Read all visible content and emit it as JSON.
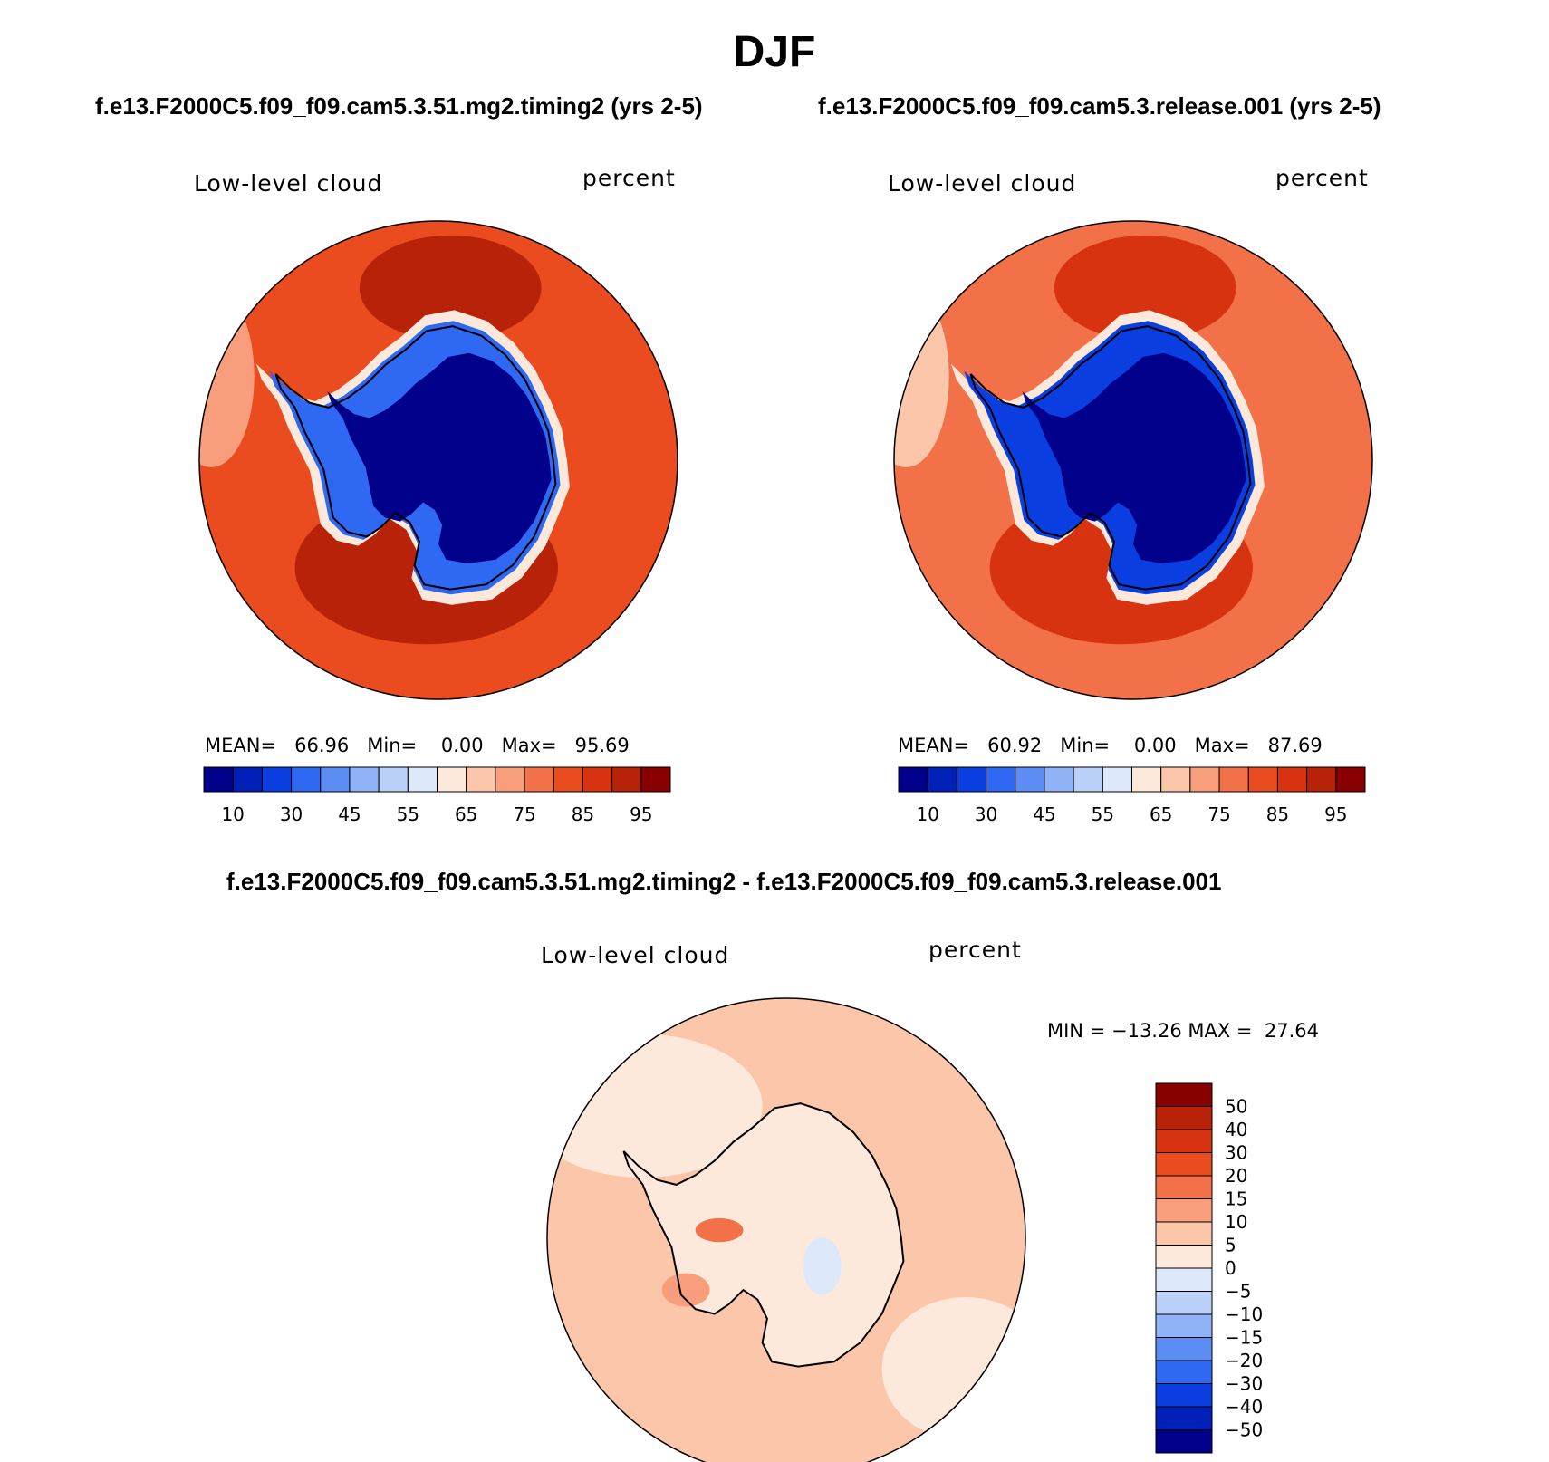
{
  "header": {
    "title": "DJF",
    "case1": "f.e13.F2000C5.f09_f09.cam5.3.51.mg2.timing2 (yrs 2-5)",
    "case2": "f.e13.F2000C5.f09_f09.cam5.3.release.001 (yrs 2-5)",
    "diff": "f.e13.F2000C5.f09_f09.cam5.3.51.mg2.timing2 - f.e13.F2000C5.f09_f09.cam5.3.release.001"
  },
  "panels": {
    "left": {
      "variable": "Low-level cloud",
      "units": "percent",
      "mean_label": "MEAN=",
      "mean": "66.96",
      "min_label": "Min=",
      "min": "0.00",
      "max_label": "Max=",
      "max": "95.69"
    },
    "right": {
      "variable": "Low-level cloud",
      "units": "percent",
      "mean_label": "MEAN=",
      "mean": "60.92",
      "min_label": "Min=",
      "min": "0.00",
      "max_label": "Max=",
      "max": "87.69"
    },
    "diff": {
      "variable": "Low-level cloud",
      "units": "percent",
      "min_label": "MIN =",
      "min": "−13.26",
      "max_label": "MAX =",
      "max": "27.64"
    }
  },
  "chart_data": [
    {
      "type": "heatmap",
      "projection": "south polar stereographic",
      "title": "f.e13.F2000C5.f09_f09.cam5.3.51.mg2.timing2 (yrs 2-5)",
      "variable": "Low-level cloud",
      "units": "percent",
      "mean": 66.96,
      "min": 0.0,
      "max": 95.69,
      "colorbar_ticks": [
        "10",
        "30",
        "45",
        "55",
        "65",
        "75",
        "85",
        "95"
      ],
      "colorbar_colors": [
        "#00008a",
        "#0020b8",
        "#0a3ee0",
        "#2f68f2",
        "#5b8df5",
        "#90b3f7",
        "#bcd1f9",
        "#dde9fb",
        "#fde9dc",
        "#fcc6ab",
        "#f99e7c",
        "#f37148",
        "#ea4b1f",
        "#d83310",
        "#b72208",
        "#880000"
      ],
      "land_color": "#00008a",
      "ocean_color": "#d83310",
      "regions": [
        {
          "name": "ocean ring",
          "color": "#ea4b1f"
        },
        {
          "name": "maximum cloud belt",
          "color": "#b72208"
        },
        {
          "name": "peripheral low",
          "color": "#f99e7c"
        },
        {
          "name": "antarctic coast",
          "color": "#2f68f2"
        },
        {
          "name": "antarctic interior",
          "color": "#00008a"
        }
      ]
    },
    {
      "type": "heatmap",
      "projection": "south polar stereographic",
      "title": "f.e13.F2000C5.f09_f09.cam5.3.release.001 (yrs 2-5)",
      "variable": "Low-level cloud",
      "units": "percent",
      "mean": 60.92,
      "min": 0.0,
      "max": 87.69,
      "colorbar_ticks": [
        "10",
        "30",
        "45",
        "55",
        "65",
        "75",
        "85",
        "95"
      ],
      "colorbar_colors": [
        "#00008a",
        "#0020b8",
        "#0a3ee0",
        "#2f68f2",
        "#5b8df5",
        "#90b3f7",
        "#bcd1f9",
        "#dde9fb",
        "#fde9dc",
        "#fcc6ab",
        "#f99e7c",
        "#f37148",
        "#ea4b1f",
        "#d83310",
        "#b72208",
        "#880000"
      ],
      "land_color": "#00008a",
      "ocean_color": "#ea4b1f",
      "regions": [
        {
          "name": "ocean ring",
          "color": "#f37148"
        },
        {
          "name": "maximum cloud belt",
          "color": "#d83310"
        },
        {
          "name": "peripheral low",
          "color": "#fcc6ab"
        },
        {
          "name": "antarctic coast",
          "color": "#0a3ee0"
        },
        {
          "name": "antarctic interior",
          "color": "#00008a"
        }
      ]
    },
    {
      "type": "heatmap",
      "projection": "south polar stereographic",
      "title": "f.e13.F2000C5.f09_f09.cam5.3.51.mg2.timing2 - f.e13.F2000C5.f09_f09.cam5.3.release.001",
      "variable": "Low-level cloud",
      "units": "percent",
      "min": -13.26,
      "max": 27.64,
      "colorbar_ticks": [
        "50",
        "40",
        "30",
        "20",
        "15",
        "10",
        "5",
        "0",
        "−5",
        "−10",
        "−15",
        "−20",
        "−30",
        "−40",
        "−50"
      ],
      "colorbar_colors": [
        "#880000",
        "#b72208",
        "#d83310",
        "#ea4b1f",
        "#f37148",
        "#f99e7c",
        "#fcc6ab",
        "#fde9dc",
        "#dde9fb",
        "#bcd1f9",
        "#90b3f7",
        "#5b8df5",
        "#2f68f2",
        "#0a3ee0",
        "#0020b8",
        "#00008a"
      ],
      "land_color": "#fde9dc",
      "ocean_color": "#fcc6ab",
      "regions": [
        {
          "name": "ocean ring",
          "color": "#fcc6ab"
        },
        {
          "name": "outer ring",
          "color": "#fde9dc"
        },
        {
          "name": "peninsula positive anomaly",
          "color": "#f37148"
        },
        {
          "name": "interior negative anomaly",
          "color": "#dde9fb"
        }
      ]
    }
  ]
}
